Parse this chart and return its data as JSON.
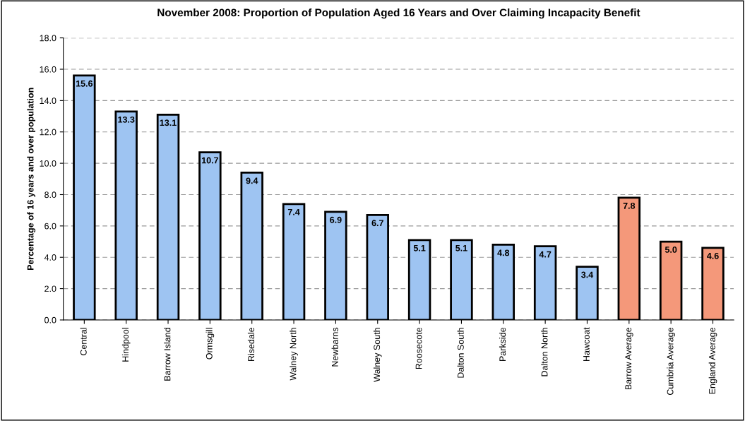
{
  "chart_data": {
    "type": "bar",
    "title": "November 2008: Proportion of Population Aged 16 Years and Over Claiming Incapacity Benefit",
    "ylabel": "Percentage of 16 years and over population",
    "categories": [
      "Central",
      "Hindpool",
      "Barrow Island",
      "Ormsgill",
      "Risedale",
      "Walney North",
      "Newbarns",
      "Walney South",
      "Roosecote",
      "Dalton South",
      "Parkside",
      "Dalton North",
      "Hawcoat",
      "Barrow Average",
      "Cumbria Average",
      "England Average"
    ],
    "values": [
      15.6,
      13.3,
      13.1,
      10.7,
      9.4,
      7.4,
      6.9,
      6.7,
      5.1,
      5.1,
      4.8,
      4.7,
      3.4,
      7.8,
      5.0,
      4.6
    ],
    "value_labels": [
      "15.6",
      "13.3",
      "13.1",
      "10.7",
      "9.4",
      "7.4",
      "6.9",
      "6.7",
      "5.1",
      "5.1",
      "4.8",
      "4.7",
      "3.4",
      "7.8",
      "5.0",
      "4.6"
    ],
    "colors": [
      "#9ec4f2",
      "#9ec4f2",
      "#9ec4f2",
      "#9ec4f2",
      "#9ec4f2",
      "#9ec4f2",
      "#9ec4f2",
      "#9ec4f2",
      "#9ec4f2",
      "#9ec4f2",
      "#9ec4f2",
      "#9ec4f2",
      "#9ec4f2",
      "#f4987a",
      "#f4987a",
      "#f4987a"
    ],
    "ylim": [
      0,
      18
    ],
    "yticks": [
      {
        "value": 0,
        "label": "0.0"
      },
      {
        "value": 2,
        "label": "2.0"
      },
      {
        "value": 4,
        "label": "4.0"
      },
      {
        "value": 6,
        "label": "6.0"
      },
      {
        "value": 8,
        "label": "8.0"
      },
      {
        "value": 10,
        "label": "10.0"
      },
      {
        "value": 12,
        "label": "12.0"
      },
      {
        "value": 14,
        "label": "14.0"
      },
      {
        "value": 16,
        "label": "16.0"
      },
      {
        "value": 18,
        "label": "18.0"
      }
    ],
    "grid": "y"
  }
}
